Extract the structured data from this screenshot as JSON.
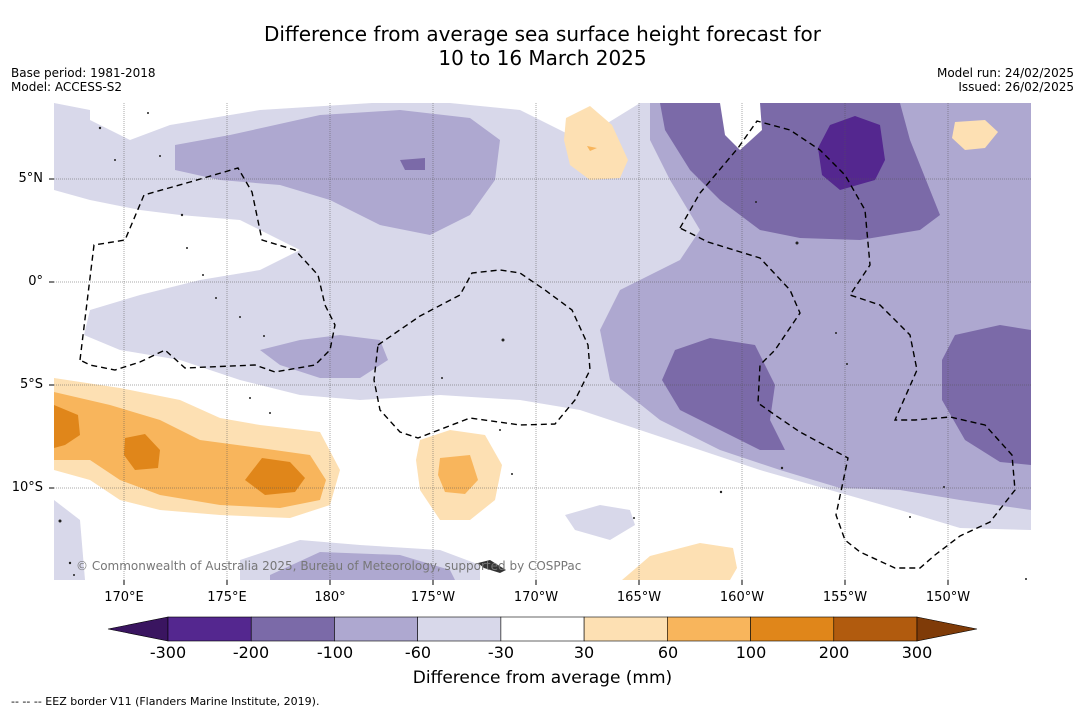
{
  "title": {
    "line1": "Difference from average sea surface height forecast for",
    "line2": "10 to 16 March 2025"
  },
  "meta_left": {
    "base_period": "Base period: 1981-2018",
    "model": "Model: ACCESS-S2"
  },
  "meta_right": {
    "model_run": "Model run: 24/02/2025",
    "issued": "Issued: 26/02/2025"
  },
  "latitude_labels": [
    "5°N",
    "0°",
    "5°S",
    "10°S"
  ],
  "longitude_labels": [
    "170°E",
    "175°E",
    "180°",
    "175°W",
    "170°W",
    "165°W",
    "160°W",
    "155°W",
    "150°W"
  ],
  "copyright": "© Commonwealth of Australia 2025, Bureau of Meteorology, supported by COSPPac",
  "colorbar": {
    "ticks": [
      "-300",
      "-200",
      "-100",
      "-60",
      "-30",
      "30",
      "60",
      "100",
      "200",
      "300"
    ],
    "colors": [
      "#54278f",
      "#7b6aa8",
      "#aea8d0",
      "#d8d8ea",
      "#ffffff",
      "#fde0b3",
      "#f8b55c",
      "#e0861a",
      "#b15b0e"
    ],
    "under_color": "#3a1560",
    "over_color": "#7f3b08",
    "label": "Difference from average (mm)"
  },
  "footer": "--  --  -- EEZ border V11 (Flanders Marine Institute, 2019).",
  "map_colors": {
    "lavender_light": "#d8d8ea",
    "lavender": "#aea8d0",
    "purple_mid": "#7b6aa8",
    "purple_dark": "#54278f",
    "peach": "#fde0b3",
    "orange_light": "#f8b55c",
    "orange": "#e0861a",
    "grid": "#555555"
  }
}
